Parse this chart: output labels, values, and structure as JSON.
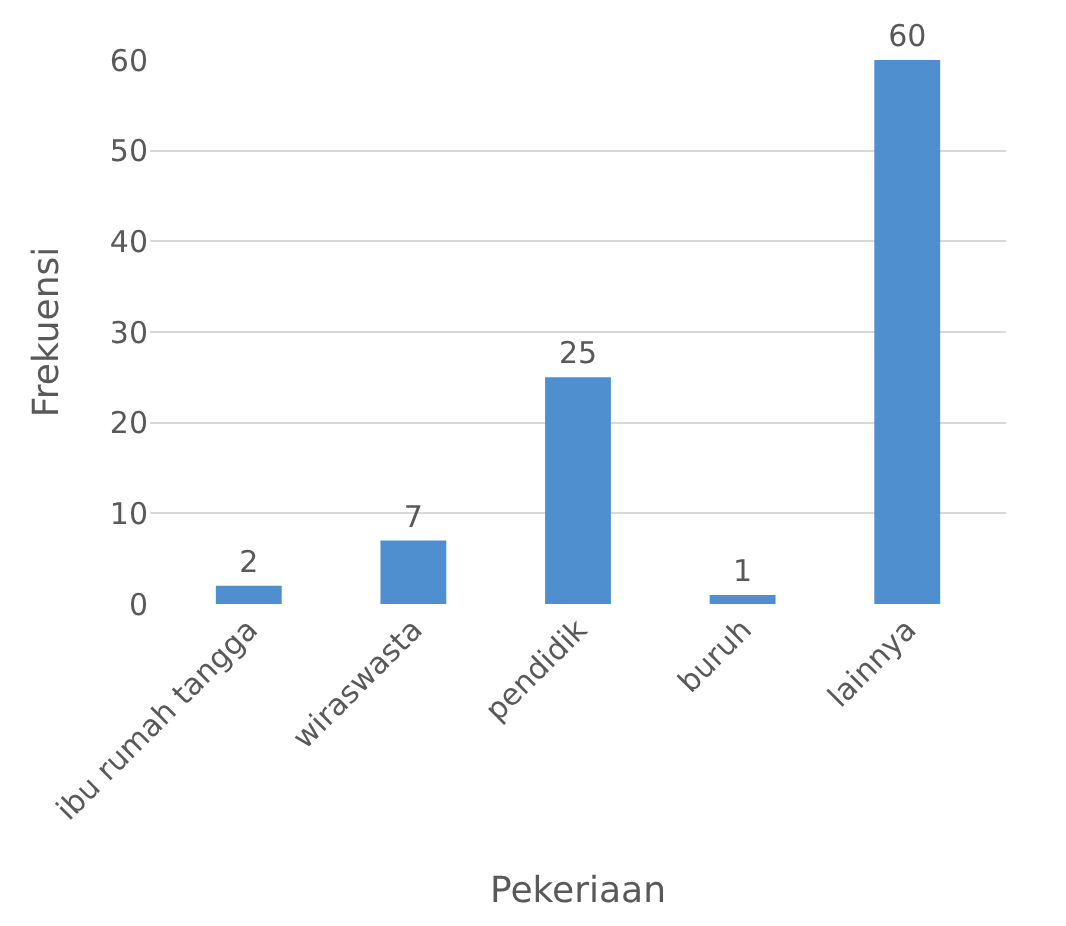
{
  "chart_data": {
    "type": "bar",
    "categories": [
      "ibu rumah tangga",
      "wiraswasta",
      "pendidik",
      "buruh",
      "lainnya"
    ],
    "values": [
      2,
      7,
      25,
      1,
      60
    ],
    "color": "#4f8fd0",
    "xlabel": "Pekeriaan",
    "ylabel": "Frekuensi",
    "ylim": [
      0,
      60
    ],
    "yticks": [
      0,
      10,
      20,
      30,
      40,
      50,
      60
    ],
    "grid": "y",
    "data_labels": true,
    "legend": false
  }
}
